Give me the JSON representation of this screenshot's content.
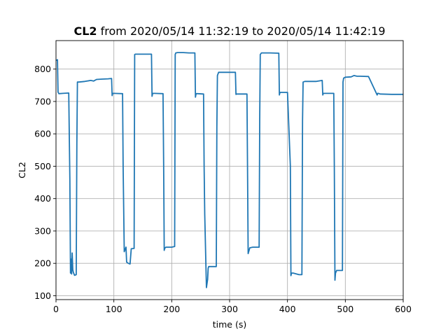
{
  "chart_data": {
    "type": "line",
    "title_bold": "CL2",
    "title_rest": " from 2020/05/14 11:32:19 to 2020/05/14 11:42:19",
    "xlabel": "time (s)",
    "ylabel": "CL2",
    "xlim": [
      0,
      600
    ],
    "ylim": [
      88,
      888
    ],
    "xticks": [
      0,
      100,
      200,
      300,
      400,
      500,
      600
    ],
    "yticks": [
      100,
      200,
      300,
      400,
      500,
      600,
      700,
      800
    ],
    "grid": true,
    "line_color": "#1f77b4",
    "series": [
      {
        "x": [
          0,
          1.5,
          2.5,
          3.5,
          5,
          12,
          22,
          24,
          25,
          26,
          27,
          28,
          29,
          30,
          32,
          35,
          36,
          37,
          40,
          50,
          60,
          65,
          70,
          80,
          90,
          96,
          97,
          98,
          100,
          115,
          116,
          118,
          121,
          122,
          125,
          128,
          130,
          135,
          136,
          137,
          150,
          165,
          166,
          167,
          170,
          185,
          186,
          187,
          188,
          190,
          200,
          205,
          206,
          207,
          210,
          220,
          230,
          240,
          241,
          242,
          245,
          255,
          256,
          257,
          260,
          262,
          263,
          264,
          266,
          270,
          275,
          277,
          278,
          279,
          281,
          285,
          300,
          310,
          311,
          312,
          320,
          330,
          331,
          332,
          335,
          340,
          350,
          351,
          352,
          353,
          355,
          360,
          370,
          385,
          386,
          387,
          390,
          400,
          405,
          406,
          407,
          410,
          420,
          425,
          426,
          427,
          430,
          440,
          450,
          460,
          461,
          462,
          465,
          480,
          481,
          482,
          483,
          485,
          490,
          495,
          496,
          497,
          500,
          510,
          515,
          520,
          525,
          540,
          555,
          556,
          557,
          560,
          580,
          600
        ],
        "y": [
          827,
          828,
          829,
          729,
          724,
          725,
          726,
          460,
          170,
          213,
          167,
          232,
          180,
          172,
          163,
          165,
          570,
          760,
          760,
          762,
          765,
          763,
          768,
          769,
          770,
          771,
          718,
          725,
          725,
          724,
          500,
          236,
          250,
          204,
          200,
          198,
          245,
          246,
          845,
          846,
          846,
          846,
          716,
          725,
          725,
          724,
          500,
          240,
          247,
          250,
          250,
          252,
          845,
          850,
          851,
          851,
          850,
          850,
          713,
          724,
          724,
          723,
          500,
          350,
          125,
          150,
          185,
          190,
          190,
          190,
          190,
          190,
          620,
          780,
          790,
          790,
          790,
          790,
          722,
          723,
          723,
          723,
          500,
          230,
          248,
          250,
          250,
          250,
          640,
          845,
          850,
          850,
          850,
          849,
          720,
          728,
          728,
          728,
          500,
          162,
          170,
          170,
          165,
          165,
          640,
          760,
          762,
          762,
          762,
          765,
          720,
          725,
          725,
          725,
          500,
          148,
          170,
          178,
          178,
          178,
          760,
          772,
          775,
          776,
          780,
          778,
          778,
          777,
          720,
          725,
          725,
          723,
          722,
          722
        ]
      }
    ]
  }
}
